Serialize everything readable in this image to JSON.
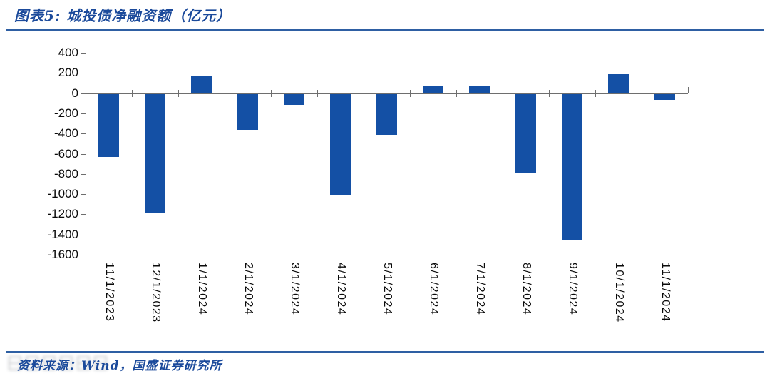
{
  "header": {
    "title": "图表5: 城投债净融资额（亿元）"
  },
  "footer": {
    "source": "资料来源：Wind，国盛证券研究所"
  },
  "colors": {
    "bar_blue": "#1450a5",
    "heading_blue": "#1b4a9b",
    "rule_blue": "#2e5fa3",
    "axis_gray": "#6e6e6e",
    "label_black": "#0a0a0a"
  },
  "chart_data": {
    "type": "bar",
    "title": "城投债净融资额（亿元）",
    "categories": [
      "11/1/2023",
      "12/1/2023",
      "1/1/2024",
      "2/1/2024",
      "3/1/2024",
      "4/1/2024",
      "5/1/2024",
      "6/1/2024",
      "7/1/2024",
      "8/1/2024",
      "9/1/2024",
      "10/1/2024",
      "11/1/2024"
    ],
    "values": [
      -630,
      -1190,
      170,
      -360,
      -115,
      -1010,
      -410,
      70,
      75,
      -785,
      -1460,
      190,
      -70
    ],
    "xlabel": "",
    "ylabel": "",
    "ylim": [
      -1600,
      400
    ],
    "ytick_step": 200,
    "grid": false,
    "legend": null,
    "bar_color": "#1450a5",
    "x_label_rotation_deg": 90
  }
}
